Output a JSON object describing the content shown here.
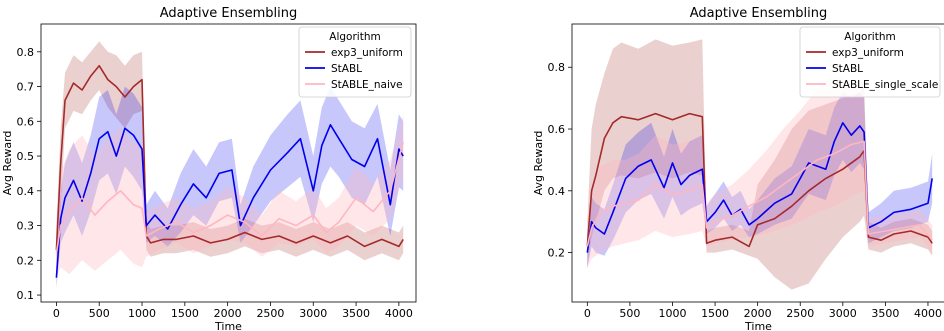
{
  "chart_data": [
    {
      "type": "line",
      "title": "Adaptive Ensembling",
      "xlabel": "Time",
      "ylabel": "Avg Reward",
      "xlim": [
        -180,
        4200
      ],
      "ylim": [
        0.08,
        0.88
      ],
      "xticks": [
        0,
        500,
        1000,
        1500,
        2000,
        2500,
        3000,
        3500,
        4000
      ],
      "yticks": [
        0.1,
        0.2,
        0.3,
        0.4,
        0.5,
        0.6,
        0.7,
        0.8
      ],
      "grid": false,
      "legend": {
        "title": "Algorithm",
        "placement": "top-right"
      },
      "series": [
        {
          "name": "exp3_uniform",
          "color": "#a52a2a",
          "x": [
            0,
            50,
            100,
            200,
            300,
            400,
            500,
            600,
            700,
            800,
            900,
            1000,
            1050,
            1100,
            1250,
            1400,
            1600,
            1800,
            2000,
            2200,
            2400,
            2600,
            2800,
            3000,
            3200,
            3400,
            3600,
            3800,
            4000,
            4050
          ],
          "y": [
            0.23,
            0.48,
            0.66,
            0.71,
            0.69,
            0.73,
            0.76,
            0.72,
            0.7,
            0.67,
            0.7,
            0.72,
            0.27,
            0.25,
            0.26,
            0.26,
            0.27,
            0.25,
            0.26,
            0.28,
            0.26,
            0.27,
            0.25,
            0.27,
            0.25,
            0.27,
            0.24,
            0.26,
            0.24,
            0.26
          ],
          "lower": [
            0.15,
            0.35,
            0.58,
            0.63,
            0.62,
            0.66,
            0.69,
            0.64,
            0.61,
            0.58,
            0.62,
            0.63,
            0.23,
            0.21,
            0.22,
            0.22,
            0.23,
            0.21,
            0.22,
            0.24,
            0.22,
            0.23,
            0.21,
            0.23,
            0.21,
            0.23,
            0.2,
            0.22,
            0.2,
            0.22
          ],
          "upper": [
            0.3,
            0.58,
            0.74,
            0.79,
            0.77,
            0.8,
            0.83,
            0.8,
            0.79,
            0.76,
            0.79,
            0.8,
            0.31,
            0.29,
            0.3,
            0.3,
            0.31,
            0.29,
            0.3,
            0.32,
            0.3,
            0.31,
            0.29,
            0.31,
            0.29,
            0.31,
            0.28,
            0.3,
            0.28,
            0.3
          ]
        },
        {
          "name": "StABL",
          "color": "#0000ee",
          "x": [
            0,
            50,
            100,
            200,
            300,
            400,
            500,
            600,
            700,
            800,
            900,
            1000,
            1050,
            1150,
            1300,
            1450,
            1600,
            1750,
            1900,
            2050,
            2150,
            2300,
            2500,
            2700,
            2850,
            3000,
            3100,
            3200,
            3300,
            3450,
            3600,
            3750,
            3900,
            4000,
            4050
          ],
          "y": [
            0.15,
            0.32,
            0.38,
            0.43,
            0.37,
            0.45,
            0.55,
            0.57,
            0.5,
            0.58,
            0.56,
            0.52,
            0.3,
            0.33,
            0.29,
            0.36,
            0.42,
            0.38,
            0.45,
            0.46,
            0.3,
            0.38,
            0.46,
            0.51,
            0.55,
            0.4,
            0.53,
            0.59,
            0.55,
            0.49,
            0.47,
            0.55,
            0.36,
            0.52,
            0.5
          ],
          "lower": [
            0.12,
            0.25,
            0.28,
            0.33,
            0.27,
            0.34,
            0.43,
            0.45,
            0.39,
            0.47,
            0.44,
            0.4,
            0.25,
            0.27,
            0.24,
            0.28,
            0.33,
            0.3,
            0.37,
            0.38,
            0.25,
            0.3,
            0.37,
            0.41,
            0.44,
            0.31,
            0.42,
            0.47,
            0.44,
            0.38,
            0.36,
            0.44,
            0.27,
            0.41,
            0.4
          ],
          "upper": [
            0.19,
            0.4,
            0.48,
            0.54,
            0.48,
            0.56,
            0.67,
            0.69,
            0.62,
            0.7,
            0.68,
            0.64,
            0.36,
            0.4,
            0.35,
            0.45,
            0.52,
            0.47,
            0.54,
            0.55,
            0.36,
            0.47,
            0.56,
            0.62,
            0.66,
            0.5,
            0.64,
            0.7,
            0.66,
            0.6,
            0.58,
            0.65,
            0.46,
            0.62,
            0.6
          ]
        },
        {
          "name": "StABLE_naive",
          "color": "#ffb6c1",
          "x": [
            0,
            50,
            150,
            300,
            450,
            600,
            750,
            900,
            1000,
            1050,
            1200,
            1400,
            1600,
            1800,
            2000,
            2200,
            2400,
            2600,
            2800,
            3000,
            3150,
            3300,
            3500,
            3700,
            3900,
            4050
          ],
          "y": [
            0.22,
            0.3,
            0.34,
            0.38,
            0.33,
            0.37,
            0.4,
            0.36,
            0.35,
            0.27,
            0.29,
            0.31,
            0.28,
            0.3,
            0.33,
            0.31,
            0.27,
            0.32,
            0.3,
            0.33,
            0.28,
            0.31,
            0.38,
            0.34,
            0.4,
            0.54
          ],
          "lower": [
            0.15,
            0.18,
            0.16,
            0.2,
            0.17,
            0.2,
            0.23,
            0.19,
            0.18,
            0.21,
            0.23,
            0.25,
            0.22,
            0.24,
            0.26,
            0.25,
            0.21,
            0.25,
            0.24,
            0.26,
            0.22,
            0.24,
            0.3,
            0.27,
            0.32,
            0.44
          ],
          "upper": [
            0.3,
            0.45,
            0.52,
            0.56,
            0.5,
            0.55,
            0.58,
            0.54,
            0.53,
            0.34,
            0.36,
            0.38,
            0.35,
            0.37,
            0.41,
            0.38,
            0.33,
            0.4,
            0.37,
            0.41,
            0.35,
            0.38,
            0.47,
            0.42,
            0.49,
            0.62
          ]
        }
      ]
    },
    {
      "type": "line",
      "title": "Adaptive Ensembling",
      "xlabel": "Time",
      "ylabel": "Avg Reward",
      "xlim": [
        -180,
        4200
      ],
      "ylim": [
        0.04,
        0.94
      ],
      "xticks": [
        0,
        500,
        1000,
        1500,
        2000,
        2500,
        3000,
        3500,
        4000
      ],
      "yticks": [
        0.2,
        0.4,
        0.6,
        0.8
      ],
      "grid": false,
      "legend": {
        "title": "Algorithm",
        "placement": "top-right"
      },
      "series": [
        {
          "name": "exp3_uniform",
          "color": "#a52a2a",
          "x": [
            0,
            50,
            100,
            200,
            300,
            400,
            600,
            800,
            1000,
            1200,
            1350,
            1400,
            1500,
            1700,
            1900,
            2000,
            2200,
            2400,
            2600,
            2800,
            3000,
            3200,
            3250,
            3300,
            3450,
            3600,
            3800,
            4000,
            4050
          ],
          "y": [
            0.22,
            0.4,
            0.45,
            0.57,
            0.62,
            0.64,
            0.63,
            0.65,
            0.63,
            0.65,
            0.64,
            0.23,
            0.24,
            0.25,
            0.22,
            0.29,
            0.31,
            0.35,
            0.4,
            0.44,
            0.47,
            0.51,
            0.53,
            0.25,
            0.24,
            0.26,
            0.27,
            0.25,
            0.23
          ],
          "lower": [
            0.15,
            0.25,
            0.3,
            0.4,
            0.44,
            0.45,
            0.44,
            0.46,
            0.44,
            0.46,
            0.45,
            0.2,
            0.2,
            0.21,
            0.19,
            0.18,
            0.12,
            0.08,
            0.1,
            0.18,
            0.25,
            0.3,
            0.32,
            0.21,
            0.2,
            0.22,
            0.23,
            0.21,
            0.19
          ],
          "upper": [
            0.3,
            0.6,
            0.68,
            0.78,
            0.86,
            0.88,
            0.86,
            0.89,
            0.87,
            0.88,
            0.89,
            0.27,
            0.28,
            0.29,
            0.27,
            0.42,
            0.5,
            0.6,
            0.66,
            0.68,
            0.7,
            0.72,
            0.74,
            0.3,
            0.28,
            0.3,
            0.31,
            0.29,
            0.27
          ]
        },
        {
          "name": "StABL",
          "color": "#0000ee",
          "x": [
            0,
            50,
            100,
            200,
            300,
            450,
            600,
            750,
            900,
            1000,
            1100,
            1200,
            1350,
            1400,
            1500,
            1600,
            1700,
            1800,
            1900,
            2000,
            2200,
            2400,
            2600,
            2800,
            2900,
            3000,
            3100,
            3200,
            3250,
            3300,
            3450,
            3600,
            3800,
            4000,
            4050
          ],
          "y": [
            0.2,
            0.3,
            0.28,
            0.26,
            0.33,
            0.44,
            0.48,
            0.5,
            0.41,
            0.49,
            0.42,
            0.45,
            0.47,
            0.3,
            0.33,
            0.37,
            0.32,
            0.34,
            0.29,
            0.31,
            0.36,
            0.39,
            0.49,
            0.47,
            0.56,
            0.62,
            0.58,
            0.61,
            0.59,
            0.28,
            0.3,
            0.33,
            0.34,
            0.36,
            0.44
          ],
          "lower": [
            0.15,
            0.22,
            0.2,
            0.19,
            0.24,
            0.33,
            0.37,
            0.39,
            0.31,
            0.38,
            0.32,
            0.34,
            0.36,
            0.26,
            0.28,
            0.31,
            0.27,
            0.29,
            0.25,
            0.26,
            0.29,
            0.31,
            0.39,
            0.37,
            0.45,
            0.5,
            0.46,
            0.49,
            0.47,
            0.23,
            0.25,
            0.27,
            0.28,
            0.3,
            0.36
          ],
          "upper": [
            0.26,
            0.38,
            0.36,
            0.34,
            0.42,
            0.55,
            0.59,
            0.62,
            0.51,
            0.6,
            0.52,
            0.56,
            0.58,
            0.35,
            0.39,
            0.43,
            0.38,
            0.4,
            0.34,
            0.37,
            0.44,
            0.48,
            0.6,
            0.58,
            0.67,
            0.72,
            0.7,
            0.72,
            0.7,
            0.33,
            0.36,
            0.4,
            0.41,
            0.43,
            0.52
          ]
        },
        {
          "name": "StABLE_single_scale",
          "color": "#ffb6c1",
          "x": [
            0,
            50,
            150,
            300,
            450,
            600,
            800,
            1000,
            1200,
            1350,
            1400,
            1500,
            1700,
            1900,
            2100,
            2300,
            2500,
            2700,
            2900,
            3100,
            3250,
            3300,
            3500,
            3700,
            3900,
            4050
          ],
          "y": [
            0.22,
            0.28,
            0.33,
            0.35,
            0.36,
            0.37,
            0.42,
            0.39,
            0.4,
            0.42,
            0.28,
            0.3,
            0.32,
            0.35,
            0.38,
            0.42,
            0.46,
            0.5,
            0.52,
            0.55,
            0.56,
            0.26,
            0.27,
            0.28,
            0.29,
            0.24
          ],
          "lower": [
            0.15,
            0.18,
            0.2,
            0.22,
            0.23,
            0.24,
            0.27,
            0.25,
            0.26,
            0.27,
            0.22,
            0.23,
            0.24,
            0.25,
            0.26,
            0.28,
            0.3,
            0.33,
            0.35,
            0.38,
            0.4,
            0.22,
            0.23,
            0.24,
            0.25,
            0.2
          ],
          "upper": [
            0.3,
            0.4,
            0.48,
            0.5,
            0.5,
            0.52,
            0.58,
            0.55,
            0.56,
            0.58,
            0.36,
            0.39,
            0.42,
            0.47,
            0.53,
            0.6,
            0.66,
            0.73,
            0.78,
            0.75,
            0.7,
            0.31,
            0.32,
            0.33,
            0.34,
            0.29
          ]
        }
      ]
    }
  ]
}
